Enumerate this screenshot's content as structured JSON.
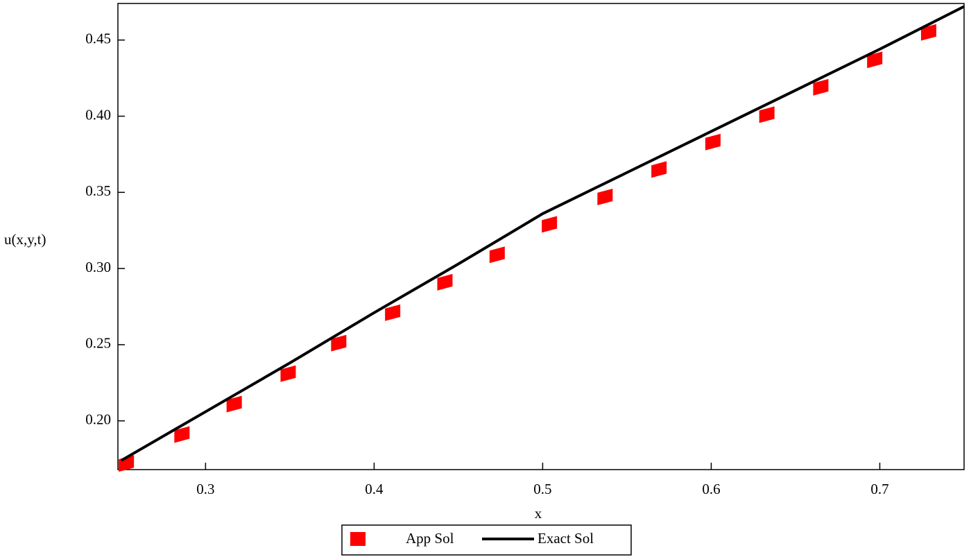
{
  "chart_data": {
    "type": "line",
    "x_label": "x",
    "y_label": "u(x,y,t)",
    "xlim": [
      0.248,
      0.75
    ],
    "ylim": [
      0.168,
      0.474
    ],
    "xticks": [
      0.3,
      0.4,
      0.5,
      0.6,
      0.7
    ],
    "yticks": [
      {
        "value": 0.2,
        "label": "0.20"
      },
      0.25,
      {
        "value": 0.3,
        "label": "0.30"
      },
      0.35,
      {
        "value": 0.4,
        "label": "0.40"
      },
      0.45
    ],
    "legend": "bottom",
    "series": [
      {
        "name": "App Sol",
        "color": "#ff0000",
        "mode": "markers",
        "x": [
          0.253,
          0.286,
          0.317,
          0.349,
          0.379,
          0.411,
          0.442,
          0.473,
          0.504,
          0.537,
          0.569,
          0.601,
          0.633,
          0.665,
          0.697,
          0.729
        ],
        "values": [
          0.172,
          0.191,
          0.211,
          0.231,
          0.251,
          0.271,
          0.291,
          0.309,
          0.329,
          0.347,
          0.365,
          0.383,
          0.401,
          0.419,
          0.437,
          0.455
        ]
      },
      {
        "name": "Exact Sol",
        "color": "#000000",
        "mode": "line",
        "x": [
          0.25,
          0.3,
          0.35,
          0.4,
          0.45,
          0.5,
          0.55,
          0.6,
          0.65,
          0.7,
          0.75
        ],
        "values": [
          0.174,
          0.206,
          0.238,
          0.271,
          0.303,
          0.336,
          0.363,
          0.39,
          0.417,
          0.444,
          0.472
        ]
      }
    ]
  }
}
